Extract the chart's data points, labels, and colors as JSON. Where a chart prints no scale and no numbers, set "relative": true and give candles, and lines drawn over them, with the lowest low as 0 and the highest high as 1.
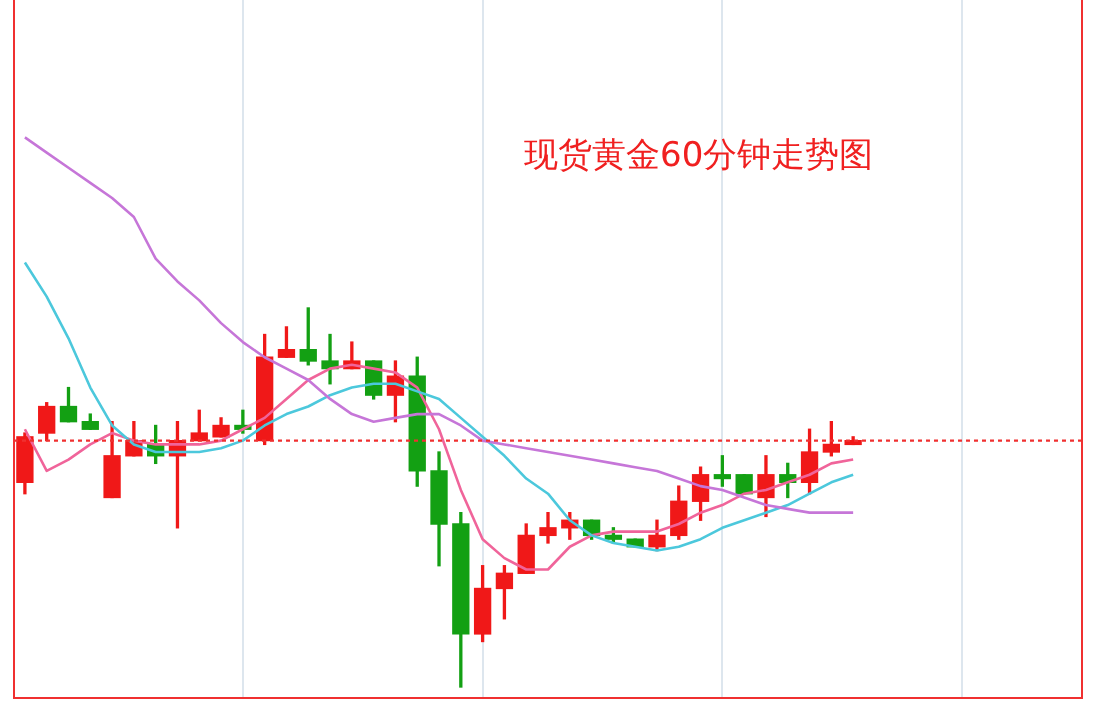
{
  "chart_data": {
    "type": "candlestick",
    "title": "现货黄金60分钟走势图",
    "relative": true,
    "legend": false,
    "grid": "x",
    "categories": [
      null,
      null,
      null,
      null,
      null,
      null,
      null,
      null,
      null,
      null,
      null,
      null,
      null,
      null,
      null,
      null,
      null,
      null,
      null,
      null,
      null,
      null,
      null,
      null,
      null,
      null,
      null,
      null,
      null,
      null,
      null,
      null,
      null,
      null,
      null,
      null,
      null,
      null,
      null,
      null,
      null,
      null,
      null,
      null,
      null,
      null,
      null,
      null,
      null
    ],
    "ohlc": [
      [
        0.54,
        0.67,
        0.51,
        0.66
      ],
      [
        0.67,
        0.75,
        0.65,
        0.74
      ],
      [
        0.74,
        0.79,
        0.7,
        0.7
      ],
      [
        0.7,
        0.72,
        0.68,
        0.68
      ],
      [
        0.5,
        0.7,
        0.5,
        0.61
      ],
      [
        0.61,
        0.7,
        0.61,
        0.65
      ],
      [
        0.64,
        0.69,
        0.59,
        0.61
      ],
      [
        0.61,
        0.7,
        0.42,
        0.65
      ],
      [
        0.65,
        0.73,
        0.65,
        0.67
      ],
      [
        0.66,
        0.71,
        0.66,
        0.69
      ],
      [
        0.69,
        0.73,
        0.67,
        0.68
      ],
      [
        0.65,
        0.93,
        0.64,
        0.87
      ],
      [
        0.87,
        0.95,
        0.87,
        0.89
      ],
      [
        0.89,
        1.0,
        0.85,
        0.86
      ],
      [
        0.86,
        0.93,
        0.8,
        0.84
      ],
      [
        0.84,
        0.91,
        0.84,
        0.86
      ],
      [
        0.86,
        0.86,
        0.76,
        0.77
      ],
      [
        0.77,
        0.86,
        0.7,
        0.82
      ],
      [
        0.82,
        0.87,
        0.53,
        0.57
      ],
      [
        0.57,
        0.62,
        0.32,
        0.43
      ],
      [
        0.43,
        0.46,
        0,
        0.14
      ],
      [
        0.14,
        0.32,
        0.12,
        0.26
      ],
      [
        0.26,
        0.32,
        0.18,
        0.3
      ],
      [
        0.3,
        0.43,
        0.3,
        0.4
      ],
      [
        0.4,
        0.46,
        0.38,
        0.42
      ],
      [
        0.42,
        0.46,
        0.39,
        0.44
      ],
      [
        0.44,
        0.44,
        0.39,
        0.4
      ],
      [
        0.4,
        0.42,
        0.38,
        0.39
      ],
      [
        0.39,
        0.39,
        0.37,
        0.37
      ],
      [
        0.37,
        0.44,
        0.36,
        0.4
      ],
      [
        0.4,
        0.53,
        0.39,
        0.49
      ],
      [
        0.49,
        0.58,
        0.44,
        0.56
      ],
      [
        0.56,
        0.61,
        0.53,
        0.55
      ],
      [
        0.56,
        0.56,
        0.51,
        0.51
      ],
      [
        0.5,
        0.61,
        0.45,
        0.56
      ],
      [
        0.56,
        0.59,
        0.5,
        0.54
      ],
      [
        0.54,
        0.68,
        0.51,
        0.62
      ],
      [
        0.62,
        0.7,
        0.61,
        0.64
      ],
      [
        0.64,
        0.66,
        0.64,
        0.65
      ],
      null,
      null,
      null,
      null,
      null,
      null,
      null,
      null,
      null,
      null
    ],
    "colors": [
      "#f01818",
      "#f01818",
      "#13a013",
      "#13a013",
      "#f01818",
      "#f01818",
      "#13a013",
      "#f01818",
      "#f01818",
      "#f01818",
      "#13a013",
      "#f01818",
      "#f01818",
      "#13a013",
      "#13a013",
      "#f01818",
      "#13a013",
      "#f01818",
      "#13a013",
      "#13a013",
      "#13a013",
      "#f01818",
      "#f01818",
      "#f01818",
      "#f01818",
      "#f01818",
      "#13a013",
      "#13a013",
      "#13a013",
      "#f01818",
      "#f01818",
      "#f01818",
      "#13a013",
      "#13a013",
      "#f01818",
      "#13a013",
      "#f01818",
      "#f01818",
      "#f01818",
      null,
      null,
      null,
      null,
      null,
      null,
      null,
      null,
      null,
      null
    ],
    "series": [
      {
        "type": "line",
        "color": "#c676d8",
        "values": [
          1.45,
          1.41,
          1.37,
          1.33,
          1.29,
          1.24,
          1.13,
          1.07,
          1.02,
          0.96,
          0.91,
          0.87,
          0.84,
          0.81,
          0.76,
          0.72,
          0.7,
          0.71,
          0.72,
          0.72,
          0.69,
          0.65,
          0.64,
          0.63,
          0.62,
          0.61,
          0.6,
          0.59,
          0.58,
          0.57,
          0.55,
          0.53,
          0.52,
          0.5,
          0.48,
          0.47,
          0.46,
          0.46,
          0.46,
          null,
          null,
          null,
          null,
          null,
          null,
          null,
          null,
          null,
          null
        ]
      },
      {
        "type": "line",
        "color": "#4cc8dc",
        "values": [
          1.12,
          1.03,
          0.92,
          0.79,
          0.69,
          0.64,
          0.62,
          0.62,
          0.62,
          0.63,
          0.65,
          0.69,
          0.72,
          0.74,
          0.77,
          0.79,
          0.8,
          0.8,
          0.78,
          0.76,
          0.71,
          0.66,
          0.61,
          0.55,
          0.51,
          0.44,
          0.4,
          0.38,
          0.37,
          0.36,
          0.37,
          0.39,
          0.42,
          0.44,
          0.46,
          0.48,
          0.51,
          0.54,
          0.56,
          null,
          null,
          null,
          null,
          null,
          null,
          null,
          null,
          null,
          null
        ]
      },
      {
        "type": "line",
        "color": "#f0649a",
        "values": [
          0.68,
          0.57,
          0.6,
          0.64,
          0.67,
          0.65,
          0.64,
          0.64,
          0.64,
          0.65,
          0.68,
          0.71,
          0.76,
          0.81,
          0.84,
          0.85,
          0.84,
          0.83,
          0.79,
          0.68,
          0.52,
          0.39,
          0.34,
          0.31,
          0.31,
          0.37,
          0.4,
          0.41,
          0.41,
          0.41,
          0.43,
          0.46,
          0.48,
          0.51,
          0.52,
          0.54,
          0.56,
          0.59,
          0.6,
          null,
          null,
          null,
          null,
          null,
          null,
          null,
          null,
          null,
          null
        ]
      }
    ],
    "ref_lines": [
      {
        "axis": "y",
        "value": 0.65,
        "color": "#f03030",
        "line_style": "dotted"
      }
    ]
  }
}
